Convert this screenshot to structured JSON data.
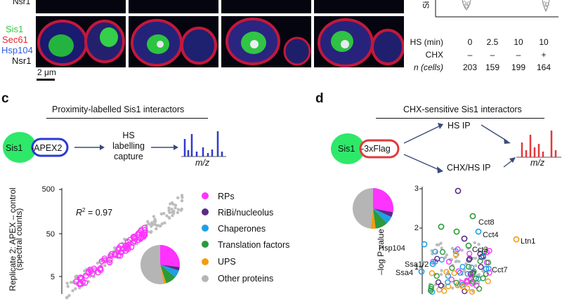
{
  "panel_b": {
    "top_row_label": "Nsr1",
    "channel_labels": [
      {
        "text": "Sis1",
        "color": "#2ecc40"
      },
      {
        "text": "Sec61",
        "color": "#e8232e"
      },
      {
        "text": "Hsp104",
        "color": "#2c5de8"
      },
      {
        "text": "Nsr1",
        "color": "#111111"
      }
    ],
    "scalebar": "2 μm",
    "axis_fragment": "Si",
    "table": {
      "rows": [
        {
          "label": "HS (min)",
          "values": [
            "0",
            "2.5",
            "10",
            "10"
          ]
        },
        {
          "label": "CHX",
          "values": [
            "–",
            "–",
            "–",
            "+"
          ]
        },
        {
          "label": "n (cells)",
          "values": [
            "203",
            "159",
            "199",
            "164"
          ]
        }
      ]
    }
  },
  "panel_c": {
    "letter": "c",
    "title": "Proximity-labelled Sis1 interactors",
    "bait": "Sis1",
    "tag": "-APEX2",
    "step_lines": [
      "HS",
      "labelling",
      "capture"
    ],
    "mz": "m/z",
    "r2_label": "R",
    "r2_sup": "2",
    "r2_value": " = 0.97",
    "ylabel_lines": [
      "Replicate 2: APEX – control",
      "(spectral counts)"
    ],
    "yticks": [
      "500",
      "50",
      "5"
    ],
    "legend": [
      {
        "label": "RPs",
        "color": "#ff33ff"
      },
      {
        "label": "RiBi/nucleolus",
        "color": "#5b2a86"
      },
      {
        "label": "Chaperones",
        "color": "#1e9fe8"
      },
      {
        "label": "Translation factors",
        "color": "#2a9a3a"
      },
      {
        "label": "UPS",
        "color": "#f39c12"
      },
      {
        "label": "Other proteins",
        "color": "#b5b5b5"
      }
    ],
    "pie_colors": [
      "#ff33ff",
      "#5b2a86",
      "#1e9fe8",
      "#2a9a3a",
      "#f39c12",
      "#b5b5b5"
    ]
  },
  "panel_d": {
    "letter": "d",
    "title": "CHX-sensitive Sis1 interactors",
    "bait": "Sis1",
    "tag": "-3xFlag",
    "branch_top": "HS IP",
    "branch_bottom": "CHX/HS IP",
    "mz": "m/z",
    "ylabel": "–log P value",
    "yticks": [
      "3",
      "2",
      "1"
    ],
    "labels": [
      "Cct8",
      "Cct4",
      "Ltn1",
      "Cct3",
      "Hsp104",
      "Ssa1/2",
      "Ssa4",
      "Cct7"
    ]
  },
  "chart_data": [
    {
      "type": "scatter",
      "title": "Proximity-labelled Sis1 interactors",
      "ylabel": "Replicate 2: APEX – control (spectral counts)",
      "yticks": [
        500,
        50,
        5
      ],
      "yscale": "log",
      "annotation": "R² = 0.97",
      "series": [
        {
          "name": "RPs"
        },
        {
          "name": "Other proteins"
        }
      ],
      "legend": [
        "RPs",
        "RiBi/nucleolus",
        "Chaperones",
        "Translation factors",
        "UPS",
        "Other proteins"
      ]
    },
    {
      "type": "scatter",
      "title": "CHX-sensitive Sis1 interactors",
      "ylabel": "–log P value",
      "yticks": [
        3,
        2,
        1
      ],
      "annotations": [
        "Cct8",
        "Cct4",
        "Ltn1",
        "Cct3",
        "Hsp104",
        "Ssa1/2",
        "Ssa4",
        "Cct7"
      ]
    }
  ]
}
